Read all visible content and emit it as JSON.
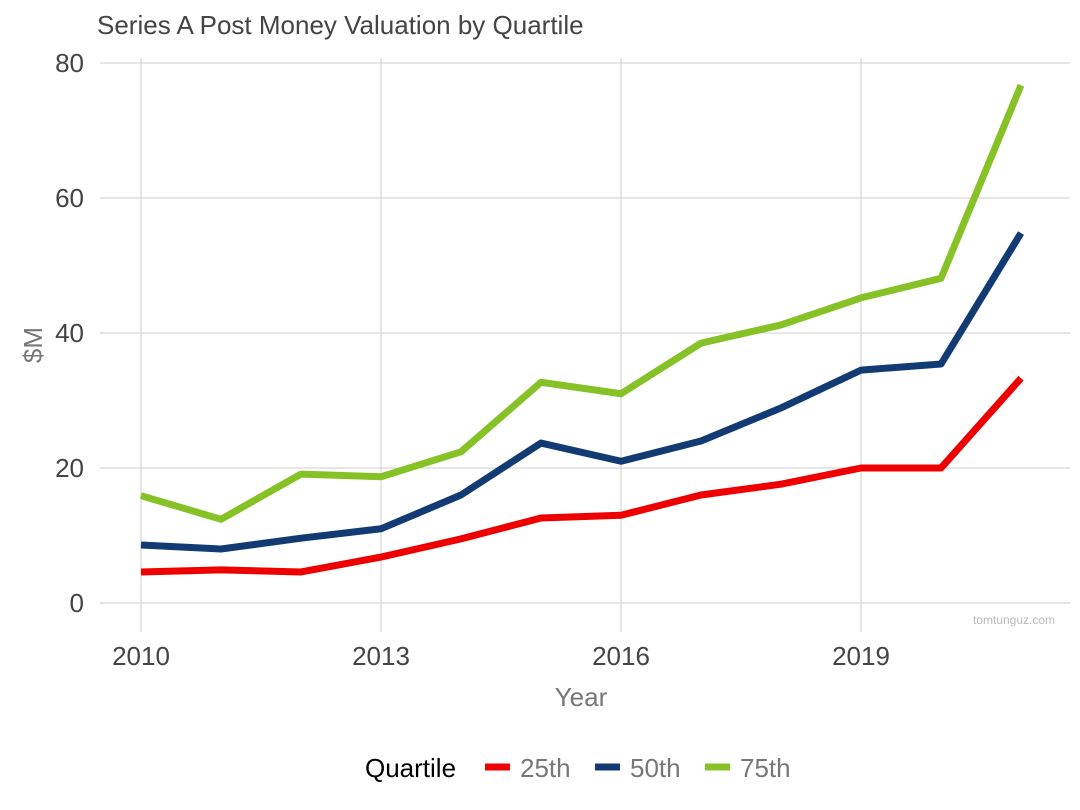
{
  "chart_data": {
    "type": "line",
    "title": "Series A Post Money Valuation by Quartile",
    "xlabel": "Year",
    "ylabel": "$M",
    "xlim": [
      2010,
      2021
    ],
    "ylim": [
      0,
      80
    ],
    "x_ticks": [
      2010,
      2013,
      2016,
      2019
    ],
    "y_ticks": [
      0,
      20,
      40,
      60,
      80
    ],
    "grid": true,
    "legend_title": "Quartile",
    "legend_position": "bottom",
    "watermark": "tomtunguz.com",
    "x": [
      2010,
      2011,
      2012,
      2013,
      2014,
      2015,
      2016,
      2017,
      2018,
      2019,
      2020,
      2021
    ],
    "series": [
      {
        "name": "25th",
        "color": "#ee0000",
        "values": [
          4.6,
          4.9,
          4.6,
          6.8,
          9.5,
          12.6,
          13.0,
          16.0,
          17.6,
          20.0,
          20.0,
          33.3
        ]
      },
      {
        "name": "50th",
        "color": "#123a73",
        "values": [
          8.6,
          8.0,
          9.6,
          11.0,
          16.0,
          23.7,
          21.0,
          24.0,
          28.9,
          34.5,
          35.4,
          54.8
        ]
      },
      {
        "name": "75th",
        "color": "#86c226",
        "values": [
          15.9,
          12.4,
          19.1,
          18.7,
          22.4,
          32.7,
          31.0,
          38.5,
          41.2,
          45.2,
          48.1,
          76.7
        ]
      }
    ]
  }
}
